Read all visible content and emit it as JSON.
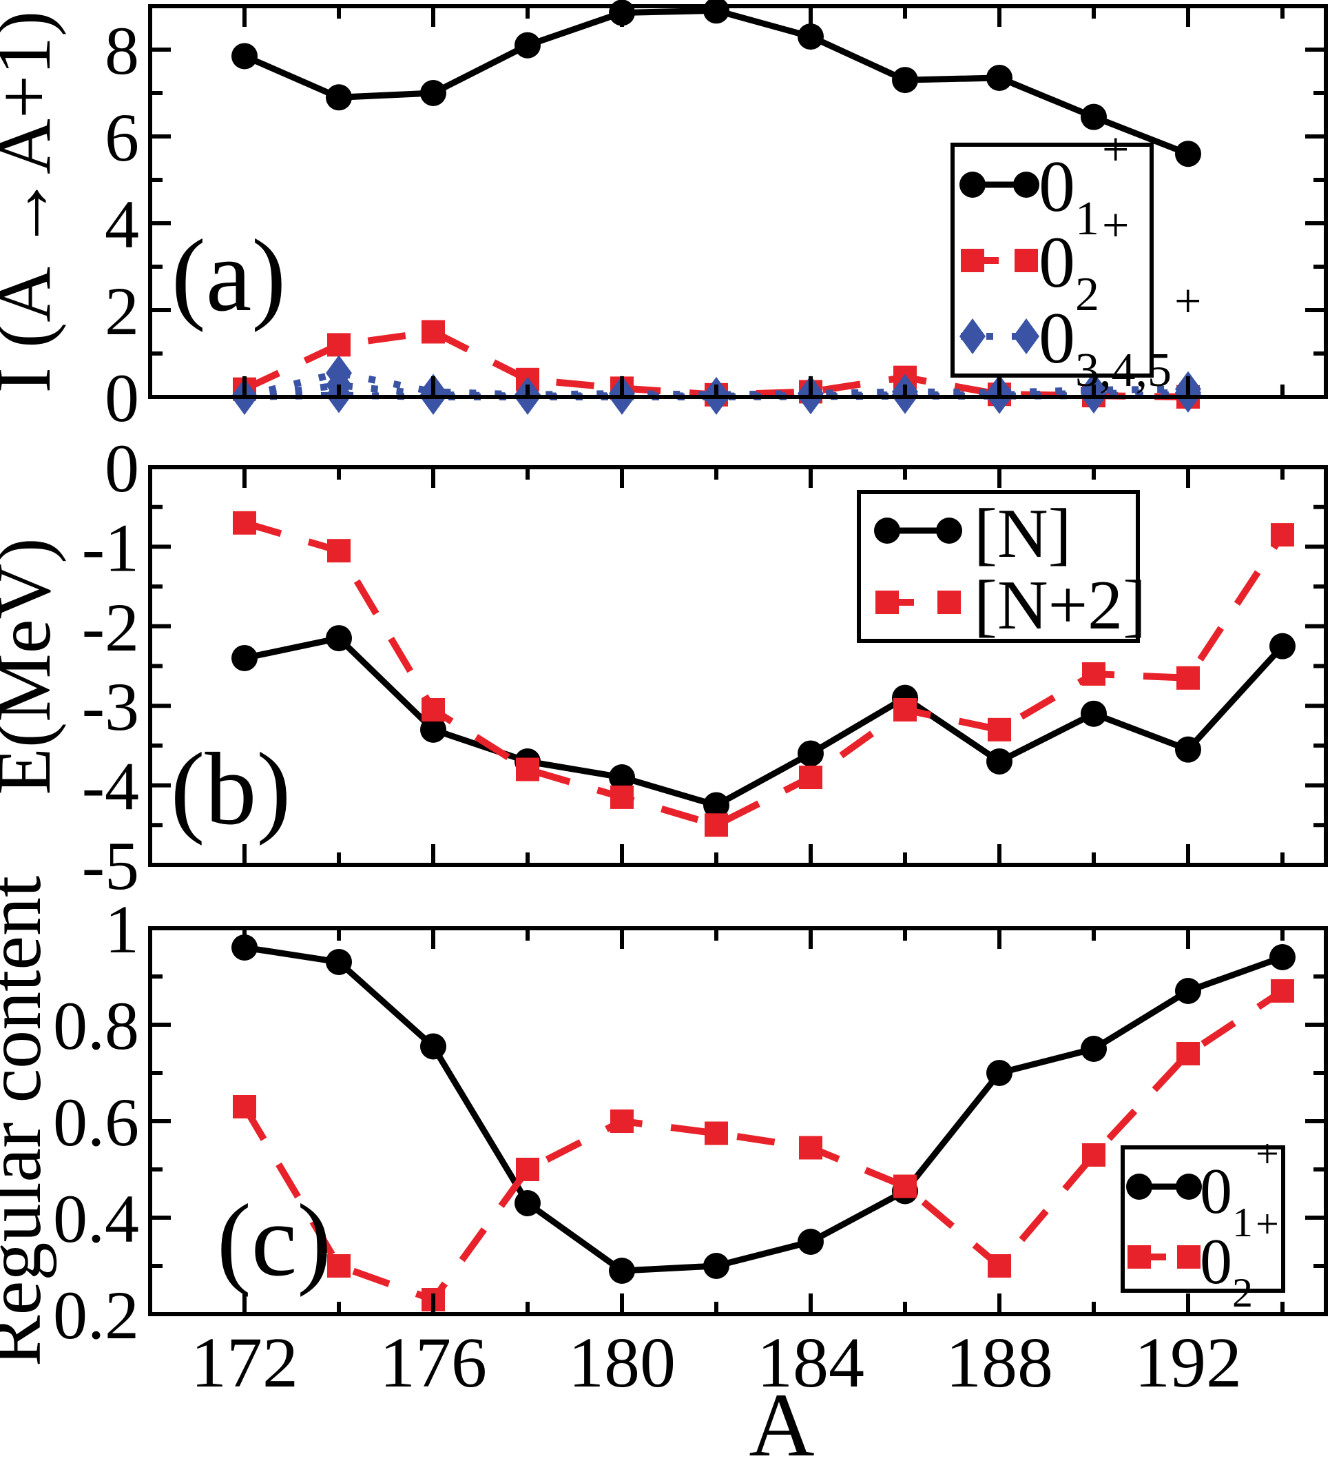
{
  "colors": {
    "black": "#000000",
    "red": "#e8222a",
    "blue": "#3a53a4",
    "frame": "#000000",
    "background": "#ffffff"
  },
  "x_axis": {
    "title": "A",
    "tick_labels": [
      "172",
      "176",
      "180",
      "184",
      "188",
      "192"
    ],
    "tick_values": [
      172,
      176,
      180,
      184,
      188,
      192
    ],
    "minor_tick_values": [
      174,
      178,
      182,
      186,
      190,
      194
    ],
    "range": [
      170,
      194.92
    ]
  },
  "chart_data": [
    {
      "panel_label": "(a)",
      "type": "line",
      "ylabel": "I (A →A+1)",
      "xlabel": "A",
      "ylim": [
        0,
        9
      ],
      "ytick_labels": [
        "0",
        "2",
        "4",
        "6",
        "8"
      ],
      "ytick_values": [
        0,
        2,
        4,
        6,
        8
      ],
      "yminor_values": [
        1,
        3,
        5,
        7
      ],
      "x": [
        172,
        174,
        176,
        178,
        180,
        182,
        184,
        186,
        188,
        190,
        192
      ],
      "series": [
        {
          "name": "0_1+",
          "color_key": "black",
          "line": "solid",
          "marker": "circle",
          "values": [
            7.85,
            6.9,
            7.0,
            8.1,
            8.85,
            8.9,
            8.3,
            7.3,
            7.35,
            6.45,
            5.6
          ]
        },
        {
          "name": "0_2+",
          "color_key": "red",
          "line": "dashed",
          "marker": "square",
          "values": [
            0.18,
            1.2,
            1.5,
            0.4,
            0.2,
            0.05,
            0.12,
            0.45,
            0.06,
            0.03,
            0.0
          ]
        },
        {
          "name": "0_3+",
          "color_key": "blue",
          "line": "dotted",
          "marker": "diamond",
          "values": [
            0.02,
            0.55,
            0.12,
            0.05,
            0.08,
            0.05,
            0.08,
            0.12,
            0.1,
            0.16,
            0.18
          ]
        },
        {
          "name": "0_4+",
          "color_key": "blue",
          "line": "dotted",
          "marker": "diamond",
          "values": [
            0.0,
            0.27,
            0.05,
            0.02,
            0.03,
            0.02,
            0.03,
            0.05,
            0.05,
            0.08,
            0.1
          ]
        },
        {
          "name": "0_5+",
          "color_key": "blue",
          "line": "dotted",
          "marker": "diamond",
          "values": [
            0.0,
            0.04,
            0.0,
            0.0,
            0.0,
            0.0,
            0.01,
            0.02,
            0.02,
            0.03,
            0.05
          ]
        }
      ],
      "legend": {
        "position": "middle-right",
        "entries": [
          {
            "main": "0",
            "sub": "1",
            "sup": "+",
            "series": 0
          },
          {
            "main": "0",
            "sub": "2",
            "sup": "+",
            "series": 1
          },
          {
            "main": "0",
            "sub": "3,4,5",
            "sup": "+",
            "series": 2
          }
        ]
      }
    },
    {
      "panel_label": "(b)",
      "type": "line",
      "ylabel": "E(MeV)",
      "xlabel": "A",
      "ylim": [
        -5,
        0
      ],
      "ytick_labels": [
        "0",
        "-1",
        "-2",
        "-3",
        "-4",
        "-5"
      ],
      "ytick_values": [
        0,
        -1,
        -2,
        -3,
        -4,
        -5
      ],
      "yminor_values": [
        -0.5,
        -1.5,
        -2.5,
        -3.5,
        -4.5
      ],
      "x": [
        172,
        174,
        176,
        178,
        180,
        182,
        184,
        186,
        188,
        190,
        192,
        194
      ],
      "series": [
        {
          "name": "[N]",
          "color_key": "black",
          "line": "solid",
          "marker": "circle",
          "values": [
            -2.4,
            -2.15,
            -3.3,
            -3.7,
            -3.9,
            -4.25,
            -3.6,
            -2.9,
            -3.7,
            -3.1,
            -3.55,
            -2.25
          ]
        },
        {
          "name": "[N+2]",
          "color_key": "red",
          "line": "dashed",
          "marker": "square",
          "values": [
            -0.7,
            -1.05,
            -3.05,
            -3.8,
            -4.15,
            -4.5,
            -3.9,
            -3.05,
            -3.3,
            -2.6,
            -2.65,
            -0.85
          ]
        }
      ],
      "legend": {
        "position": "top-right",
        "entries": [
          {
            "main": "[N]",
            "series": 0
          },
          {
            "main": "[N+2]",
            "series": 1
          }
        ]
      }
    },
    {
      "panel_label": "(c)",
      "type": "line",
      "ylabel": "Regular content",
      "xlabel": "A",
      "ylim": [
        0.2,
        1.0
      ],
      "ytick_labels": [
        "1",
        "0.8",
        "0.6",
        "0.4",
        "0.2"
      ],
      "ytick_values": [
        1.0,
        0.8,
        0.6,
        0.4,
        0.2
      ],
      "yminor_values": [
        0.9,
        0.7,
        0.5,
        0.3
      ],
      "x": [
        172,
        174,
        176,
        178,
        180,
        182,
        184,
        186,
        188,
        190,
        192,
        194
      ],
      "series": [
        {
          "name": "0_1+",
          "color_key": "black",
          "line": "solid",
          "marker": "circle",
          "values": [
            0.96,
            0.93,
            0.755,
            0.43,
            0.29,
            0.3,
            0.35,
            0.455,
            0.7,
            0.75,
            0.87,
            0.94
          ]
        },
        {
          "name": "0_2+",
          "color_key": "red",
          "line": "dashed",
          "marker": "square",
          "values": [
            0.63,
            0.3,
            0.23,
            0.5,
            0.6,
            0.575,
            0.545,
            0.465,
            0.3,
            0.53,
            0.74,
            0.87
          ]
        }
      ],
      "legend": {
        "position": "bottom-right",
        "entries": [
          {
            "main": "0",
            "sub": "1",
            "sup": "+",
            "series": 0
          },
          {
            "main": "0",
            "sub": "2",
            "sup": "+",
            "series": 1
          }
        ]
      }
    }
  ]
}
